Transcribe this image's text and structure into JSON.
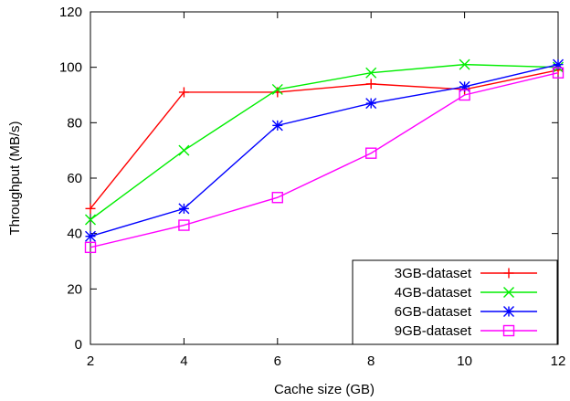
{
  "chart_data": {
    "type": "line",
    "xlabel": "Cache size (GB)",
    "ylabel": "Throughput (MB/s)",
    "xlim": [
      2,
      12
    ],
    "ylim": [
      0,
      120
    ],
    "xticks": [
      2,
      4,
      6,
      8,
      10,
      12
    ],
    "yticks": [
      0,
      20,
      40,
      60,
      80,
      100,
      120
    ],
    "grid": false,
    "legend_position": "bottom-right",
    "x": [
      2,
      4,
      6,
      8,
      10,
      12
    ],
    "series": [
      {
        "name": "3GB-dataset",
        "color": "#ff0000",
        "marker": "plus",
        "values": [
          49,
          91,
          91,
          94,
          92,
          99
        ]
      },
      {
        "name": "4GB-dataset",
        "color": "#00ee00",
        "marker": "cross",
        "values": [
          45,
          70,
          92,
          98,
          101,
          100
        ]
      },
      {
        "name": "6GB-dataset",
        "color": "#0000ff",
        "marker": "asterisk",
        "values": [
          39,
          49,
          79,
          87,
          93,
          101
        ]
      },
      {
        "name": "9GB-dataset",
        "color": "#ff00ff",
        "marker": "square",
        "values": [
          35,
          43,
          53,
          69,
          90,
          98
        ]
      }
    ]
  }
}
